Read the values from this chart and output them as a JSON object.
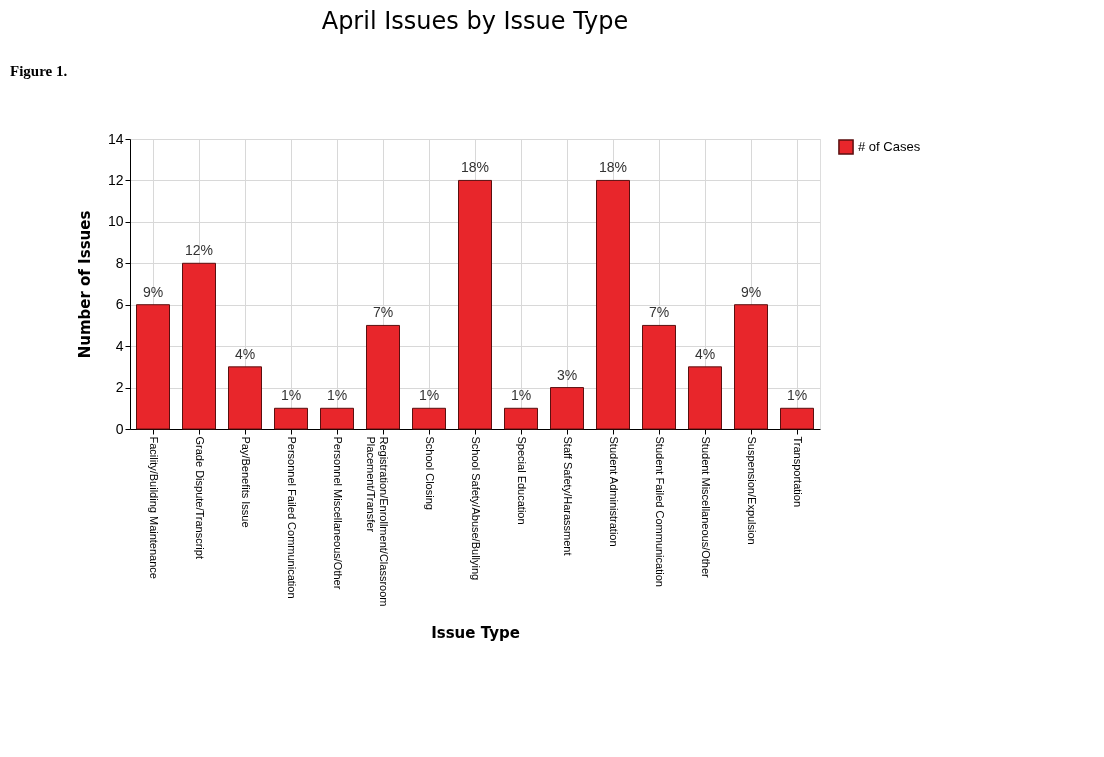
{
  "chart_data": {
    "type": "bar",
    "title": "April Issues by Issue Type",
    "xlabel": "Issue Type",
    "ylabel": "Number of Issues",
    "annotations": [
      "Figure 1.",
      {
        "text": "9%",
        "x": "Facility/Building Maintenance",
        "y": 6
      },
      {
        "text": "12%",
        "x": "Grade Dispute/Transcript",
        "y": 8
      },
      {
        "text": "4%",
        "x": "Pay/Benefits Issue",
        "y": 3
      },
      {
        "text": "1%",
        "x": "Personnel Failed Communication",
        "y": 1
      },
      {
        "text": "1%",
        "x": "Personnel Miscellaneous/Other",
        "y": 1
      },
      {
        "text": "7%",
        "x": "Registration/Enrollment/Classroom Placement/Transfer",
        "y": 5
      },
      {
        "text": "1%",
        "x": "School Closing",
        "y": 1
      },
      {
        "text": "18%",
        "x": "School Safety/Abuse/Bullying",
        "y": 12
      },
      {
        "text": "1%",
        "x": "Special Education",
        "y": 1
      },
      {
        "text": "3%",
        "x": "Staff Safety/Harassment",
        "y": 2
      },
      {
        "text": "18%",
        "x": "Student Administration",
        "y": 12
      },
      {
        "text": "7%",
        "x": "Student Failed Communication",
        "y": 5
      },
      {
        "text": "4%",
        "x": "Student Miscellaneous/Other",
        "y": 3
      },
      {
        "text": "9%",
        "x": "Suspension/Expulsion",
        "y": 6
      },
      {
        "text": "1%",
        "x": "Transportation",
        "y": 1
      }
    ],
    "categories": [
      "Facility/Building Maintenance",
      "Grade Dispute/Transcript",
      "Pay/Benefits Issue",
      "Personnel Failed Communication",
      "Personnel Miscellaneous/Other",
      "Registration/Enrollment/Classroom Placement/Transfer",
      "School Closing",
      "School Safety/Abuse/Bullying",
      "Special Education",
      "Staff Safety/Harassment",
      "Student Administration",
      "Student Failed Communication",
      "Student Miscellaneous/Other",
      "Suspension/Expulsion",
      "Transportation"
    ],
    "series": [
      {
        "name": "# of Cases",
        "color": "#e8262b",
        "values": [
          6,
          8,
          3,
          1,
          1,
          5,
          1,
          12,
          1,
          2,
          12,
          5,
          3,
          6,
          1
        ]
      }
    ],
    "ylim": [
      0,
      14
    ],
    "yticks": [
      0,
      2,
      4,
      6,
      8,
      10,
      12,
      14
    ],
    "grid": true,
    "legend": "top right"
  }
}
